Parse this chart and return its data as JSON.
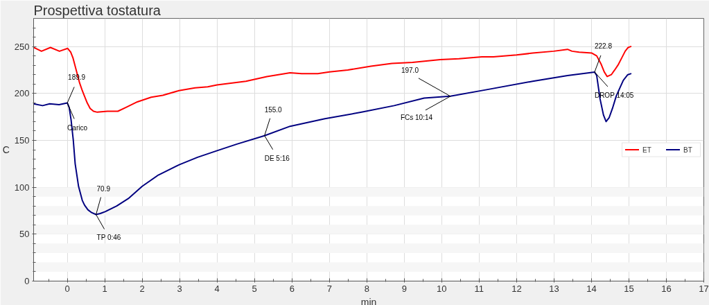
{
  "chart_data": {
    "type": "line",
    "title": "Prospettiva tostatura",
    "xlabel": "min",
    "ylabel": "C",
    "series": [
      {
        "name": "ET",
        "color": "#ff0000",
        "x": [
          -0.9,
          -0.69,
          -0.45,
          -0.21,
          0.01,
          0.09,
          0.15,
          0.21,
          0.27,
          0.33,
          0.4,
          0.46,
          0.53,
          0.61,
          0.7,
          0.8,
          1.07,
          1.35,
          1.56,
          1.87,
          2.24,
          2.55,
          2.98,
          3.41,
          3.75,
          4.0,
          4.77,
          5.33,
          5.95,
          6.26,
          6.69,
          7.0,
          7.49,
          8.11,
          8.67,
          9.22,
          9.96,
          10.46,
          11.07,
          11.38,
          12.0,
          12.43,
          12.99,
          13.36,
          13.48,
          13.67,
          14.01,
          14.14,
          14.26,
          14.34,
          14.42,
          14.53,
          14.62,
          14.72,
          14.81,
          14.9,
          14.98,
          15.05
        ],
        "values": [
          249,
          245,
          249,
          245,
          248,
          244,
          238,
          229,
          220,
          211,
          203,
          197,
          190,
          184,
          181,
          180,
          181,
          181,
          185,
          191,
          196,
          198,
          203,
          206,
          207,
          209,
          213,
          218,
          222,
          221,
          221,
          223,
          225,
          229,
          232,
          233,
          236,
          237,
          239,
          239,
          241,
          243,
          245,
          247,
          245,
          244,
          243,
          240,
          231,
          223,
          218,
          220,
          225,
          231,
          238,
          245,
          249,
          250
        ]
      },
      {
        "name": "BT",
        "color": "#000080",
        "x": [
          -0.9,
          -0.66,
          -0.47,
          -0.22,
          0,
          0.05,
          0.1,
          0.16,
          0.21,
          0.3,
          0.4,
          0.46,
          0.55,
          0.65,
          0.767,
          0.88,
          1.01,
          1.32,
          1.63,
          2.0,
          2.43,
          2.99,
          3.48,
          4.0,
          4.53,
          5.267,
          5.95,
          6.88,
          7.86,
          8.73,
          9.53,
          10.233,
          11.2,
          12.43,
          13.36,
          14.083,
          14.14,
          14.23,
          14.32,
          14.39,
          14.47,
          14.56,
          14.66,
          14.76,
          14.85,
          14.97,
          15.05
        ],
        "values": [
          189,
          187,
          189,
          188,
          189.9,
          185,
          172,
          150,
          125,
          101,
          86,
          81,
          76,
          73,
          70.9,
          72,
          74,
          80,
          88,
          101,
          113,
          124,
          132,
          139,
          146,
          155.0,
          165,
          173,
          180,
          187,
          195,
          197.0,
          204,
          213,
          219,
          222.8,
          219,
          194,
          177,
          170,
          174,
          184,
          197,
          206,
          214,
          220,
          221
        ]
      }
    ],
    "annotations": [
      {
        "text": "189.9",
        "x": 0,
        "y": 189.9
      },
      {
        "text": "Carico",
        "x": 0,
        "y": 189.9
      },
      {
        "text": "70.9",
        "x": 0.767,
        "y": 70.9
      },
      {
        "text": "TP 0:46",
        "x": 0.767,
        "y": 70.9
      },
      {
        "text": "155.0",
        "x": 5.267,
        "y": 155.0
      },
      {
        "text": "DE 5:16",
        "x": 5.267,
        "y": 155.0
      },
      {
        "text": "197.0",
        "x": 10.233,
        "y": 197.0
      },
      {
        "text": "FCs 10:14",
        "x": 10.233,
        "y": 197.0
      },
      {
        "text": "222.8",
        "x": 14.083,
        "y": 222.8
      },
      {
        "text": "DROP 14:05",
        "x": 14.083,
        "y": 222.8
      }
    ],
    "xlim": [
      -0.9,
      17
    ],
    "ylim": [
      0,
      280
    ],
    "xticks": [
      {
        "value": -0.5,
        "label": null
      },
      0,
      {
        "value": 0.5,
        "label": null
      },
      1,
      {
        "value": 1.5,
        "label": null
      },
      2,
      {
        "value": 2.5,
        "label": null
      },
      3,
      {
        "value": 3.5,
        "label": null
      },
      4,
      {
        "value": 4.5,
        "label": null
      },
      5,
      {
        "value": 5.5,
        "label": null
      },
      6,
      {
        "value": 6.5,
        "label": null
      },
      7,
      {
        "value": 7.5,
        "label": null
      },
      8,
      {
        "value": 8.5,
        "label": null
      },
      9,
      {
        "value": 9.5,
        "label": null
      },
      10,
      {
        "value": 10.5,
        "label": null
      },
      11,
      {
        "value": 11.5,
        "label": null
      },
      12,
      {
        "value": 12.5,
        "label": null
      },
      13,
      {
        "value": 13.5,
        "label": null
      },
      14,
      {
        "value": 14.5,
        "label": null
      },
      15,
      {
        "value": 15.5,
        "label": null
      },
      16,
      {
        "value": 16.5,
        "label": null
      },
      17
    ],
    "yticks": [
      0,
      {
        "value": 10,
        "label": null
      },
      {
        "value": 20,
        "label": null
      },
      {
        "value": 30,
        "label": null
      },
      {
        "value": 40,
        "label": null
      },
      50,
      {
        "value": 60,
        "label": null
      },
      {
        "value": 70,
        "label": null
      },
      {
        "value": 80,
        "label": null
      },
      {
        "value": 90,
        "label": null
      },
      100,
      {
        "value": 110,
        "label": null
      },
      {
        "value": 120,
        "label": null
      },
      {
        "value": 130,
        "label": null
      },
      {
        "value": 140,
        "label": null
      },
      150,
      {
        "value": 160,
        "label": null
      },
      {
        "value": 170,
        "label": null
      },
      {
        "value": 180,
        "label": null
      },
      {
        "value": 190,
        "label": null
      },
      200,
      {
        "value": 210,
        "label": null
      },
      {
        "value": 220,
        "label": null
      },
      {
        "value": 230,
        "label": null
      },
      {
        "value": 240,
        "label": null
      },
      250,
      {
        "value": 260,
        "label": null
      },
      {
        "value": 270,
        "label": null
      }
    ],
    "bands": [
      {
        "axis": "y",
        "from": 10,
        "to": 20,
        "color": "#f6f6f6"
      },
      {
        "axis": "y",
        "from": 30,
        "to": 40,
        "color": "#f6f6f6"
      },
      {
        "axis": "y",
        "from": 50,
        "to": 60,
        "color": "#f6f6f6"
      },
      {
        "axis": "y",
        "from": 70,
        "to": 80,
        "color": "#f6f6f6"
      },
      {
        "axis": "y",
        "from": 90,
        "to": 100,
        "color": "#f6f6f6"
      }
    ],
    "grid": true,
    "legend": "right",
    "line_style": "solid"
  }
}
